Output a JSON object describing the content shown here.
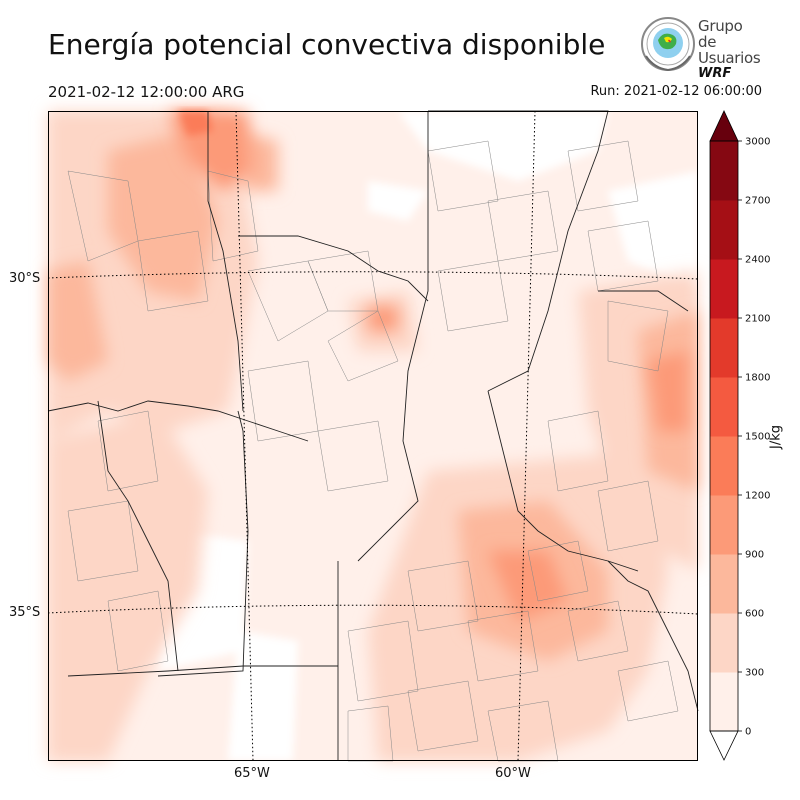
{
  "title": "Energía potencial convectiva disponible",
  "valid_time": "2021-02-12 12:00:00 ARG",
  "run_time": "Run: 2021-02-12 06:00:00",
  "logo": {
    "line1": "Grupo de",
    "line2": "Usuarios",
    "line3": "WRF"
  },
  "map": {
    "lat_labels": [
      "30°S",
      "35°S"
    ],
    "lon_labels": [
      "65°W",
      "60°W"
    ]
  },
  "colorbar": {
    "unit": "J/kg",
    "ticks": [
      "0",
      "300",
      "600",
      "900",
      "1200",
      "1500",
      "1800",
      "2100",
      "2400",
      "2700",
      "3000"
    ],
    "colors": [
      "#fff0ea",
      "#fdd6c6",
      "#fcb89c",
      "#fc9a78",
      "#fb7c58",
      "#f45a40",
      "#e33a2b",
      "#c8191f",
      "#a50f15",
      "#850812",
      "#67000d"
    ]
  }
}
